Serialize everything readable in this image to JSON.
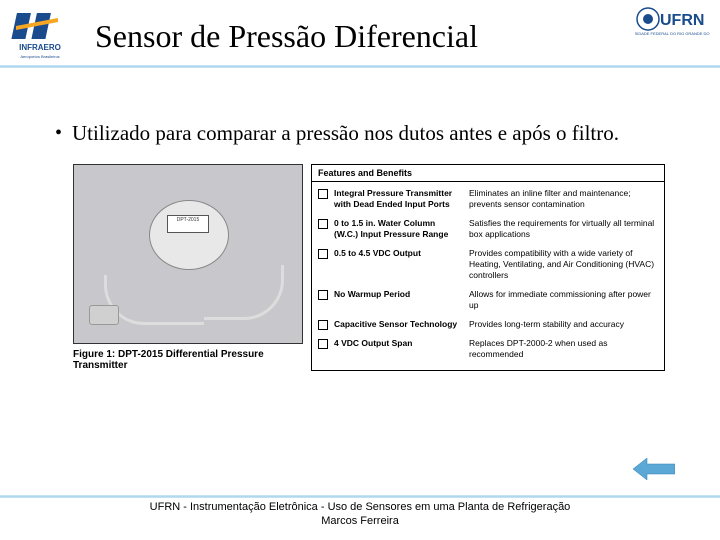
{
  "header": {
    "title": "Sensor de Pressão Diferencial",
    "left_logo_text1": "INFRAERO",
    "right_logo_text": "UFRN"
  },
  "bullet": {
    "text": "Utilizado para comparar a pressão nos dutos antes e após o filtro."
  },
  "sensor": {
    "caption": "Figure 1: DPT-2015 Differential Pressure Transmitter",
    "label_model": "DPT-2015"
  },
  "features": {
    "header": "Features and Benefits",
    "rows": [
      {
        "name": "Integral Pressure Transmitter with Dead Ended Input Ports",
        "benefit": "Eliminates an inline filter and maintenance; prevents sensor contamination"
      },
      {
        "name": "0 to 1.5 in. Water Column (W.C.) Input Pressure Range",
        "benefit": "Satisfies the requirements for virtually all terminal box applications"
      },
      {
        "name": "0.5 to 4.5 VDC Output",
        "benefit": "Provides compatibility with a wide variety of Heating, Ventilating, and Air Conditioning (HVAC) controllers"
      },
      {
        "name": "No Warmup Period",
        "benefit": "Allows for immediate commissioning after power up"
      },
      {
        "name": "Capacitive Sensor Technology",
        "benefit": "Provides long-term stability and accuracy"
      },
      {
        "name": "4 VDC Output Span",
        "benefit": "Replaces DPT-2000-2 when used as recommended"
      }
    ]
  },
  "footer": {
    "line1": "UFRN - Instrumentação Eletrônica - Uso de Sensores em uma Planta de Refrigeração",
    "line2": "Marcos Ferreira"
  },
  "colors": {
    "accent_line": "#a8d5ec",
    "logo_blue": "#1a4b8c",
    "arrow_blue": "#5ba8d6"
  }
}
